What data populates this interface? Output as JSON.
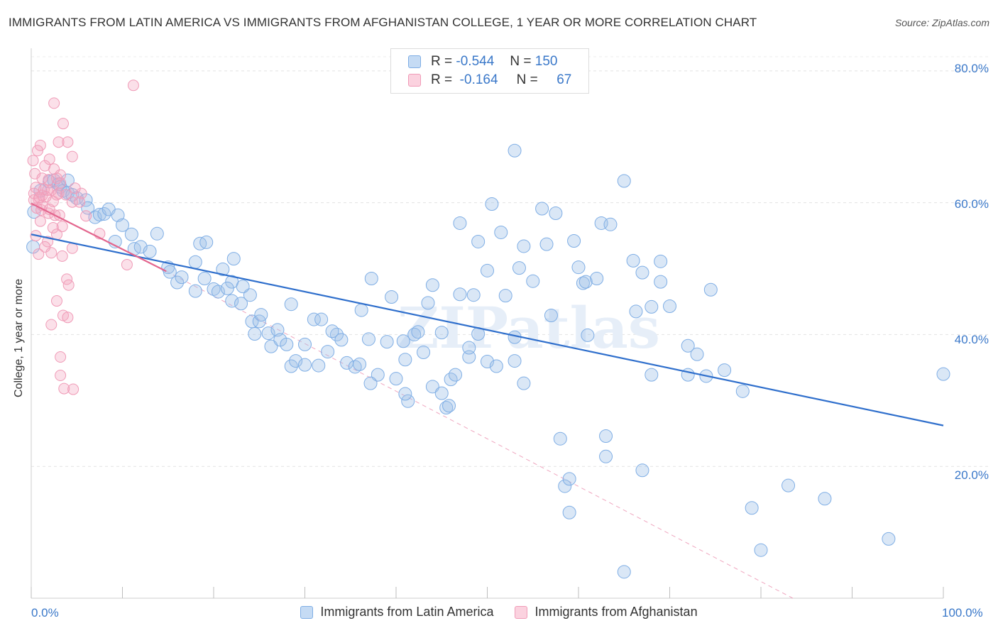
{
  "title": "IMMIGRANTS FROM LATIN AMERICA VS IMMIGRANTS FROM AFGHANISTAN COLLEGE, 1 YEAR OR MORE CORRELATION CHART",
  "source": "Source: ZipAtlas.com",
  "watermark": "ZIPatlas",
  "legend": {
    "rows": [
      {
        "r_label": "R =",
        "r_value": "-0.544",
        "n_label": "N =",
        "n_value": "150",
        "color": "#9dbfe8"
      },
      {
        "r_label": "R =",
        "r_value": "-0.164",
        "n_label": "N =",
        "n_value": "67",
        "color": "#f4a7c0"
      }
    ]
  },
  "bottom_legend": [
    {
      "label": "Immigrants from Latin America",
      "color": "#9dbfe8"
    },
    {
      "label": "Immigrants from Afghanistan",
      "color": "#f4a7c0"
    }
  ],
  "x_tick_labels": {
    "left": "0.0%",
    "right": "100.0%"
  },
  "y_tick_labels": [
    "80.0%",
    "60.0%",
    "40.0%",
    "20.0%"
  ],
  "chart_data": {
    "type": "scatter",
    "title": "IMMIGRANTS FROM LATIN AMERICA VS IMMIGRANTS FROM AFGHANISTAN COLLEGE, 1 YEAR OR MORE CORRELATION CHART",
    "xlabel": "",
    "ylabel": "College, 1 year or more",
    "xlim": [
      0,
      100
    ],
    "ylim": [
      0,
      83
    ],
    "y_ticks": [
      20,
      40,
      60,
      80
    ],
    "grid": "horizontal dashed",
    "legend_position": "top-center",
    "colors": {
      "latin": "#4f8fd6",
      "afghan": "#ec7aa0",
      "latin_line": "#2f6fcc",
      "afghan_line": "#e3668e"
    },
    "series": [
      {
        "name": "Immigrants from Latin America",
        "points": [
          [
            0.2,
            53.3
          ],
          [
            0.3,
            58.6
          ],
          [
            1,
            61.8
          ],
          [
            2,
            63.2
          ],
          [
            2.5,
            63.4
          ],
          [
            3,
            62.8
          ],
          [
            3.2,
            62.4
          ],
          [
            3.5,
            61.8
          ],
          [
            4,
            61.5
          ],
          [
            4.5,
            61.2
          ],
          [
            5,
            60.7
          ],
          [
            6,
            60.4
          ],
          [
            6.2,
            59.2
          ],
          [
            7,
            57.8
          ],
          [
            7.5,
            58.2
          ],
          [
            8,
            58.3
          ],
          [
            8.5,
            59.0
          ],
          [
            9.5,
            58.1
          ],
          [
            10,
            56.6
          ],
          [
            11,
            55.2
          ],
          [
            9.2,
            54.1
          ],
          [
            11.3,
            53.0
          ],
          [
            12,
            53.3
          ],
          [
            13,
            52.6
          ],
          [
            13.8,
            55.3
          ],
          [
            15,
            50.2
          ],
          [
            15.2,
            49.5
          ],
          [
            16,
            47.9
          ],
          [
            16.5,
            48.7
          ],
          [
            18,
            46.6
          ],
          [
            18,
            51.0
          ],
          [
            18.5,
            53.8
          ],
          [
            19,
            48.5
          ],
          [
            20,
            46.9
          ],
          [
            19.2,
            54.0
          ],
          [
            20.5,
            46.5
          ],
          [
            21,
            49.9
          ],
          [
            22,
            48.0
          ],
          [
            21.5,
            47.0
          ],
          [
            22.2,
            51.5
          ],
          [
            22,
            45.1
          ],
          [
            23,
            44.7
          ],
          [
            24,
            46.0
          ],
          [
            23.2,
            47.3
          ],
          [
            24.5,
            40.1
          ],
          [
            24.2,
            42.0
          ],
          [
            25,
            42.0
          ],
          [
            25.2,
            43.0
          ],
          [
            26,
            40.2
          ],
          [
            27,
            40.7
          ],
          [
            26.3,
            38.2
          ],
          [
            27.3,
            39.2
          ],
          [
            28,
            38.5
          ],
          [
            28.5,
            35.2
          ],
          [
            28.5,
            44.6
          ],
          [
            29,
            36.0
          ],
          [
            30,
            35.4
          ],
          [
            30,
            38.5
          ],
          [
            31,
            42.3
          ],
          [
            31.5,
            35.3
          ],
          [
            31.8,
            42.3
          ],
          [
            32.5,
            37.4
          ],
          [
            33.5,
            40.0
          ],
          [
            34,
            39.2
          ],
          [
            34.6,
            35.7
          ],
          [
            35.5,
            35.1
          ],
          [
            36,
            35.5
          ],
          [
            36.2,
            43.7
          ],
          [
            37,
            39.3
          ],
          [
            37.3,
            48.5
          ],
          [
            38,
            33.9
          ],
          [
            37.2,
            32.6
          ],
          [
            39,
            38.9
          ],
          [
            39.5,
            45.7
          ],
          [
            40,
            33.3
          ],
          [
            40.8,
            39.0
          ],
          [
            41,
            36.2
          ],
          [
            41.3,
            29.9
          ],
          [
            41,
            31.0
          ],
          [
            42,
            40.0
          ],
          [
            42.4,
            40.4
          ],
          [
            43,
            37.3
          ],
          [
            43.5,
            44.8
          ],
          [
            44,
            47.5
          ],
          [
            44,
            32.1
          ],
          [
            45,
            31.1
          ],
          [
            45.5,
            28.9
          ],
          [
            45.8,
            29.2
          ],
          [
            46,
            33.2
          ],
          [
            46.5,
            33.9
          ],
          [
            47,
            46.1
          ],
          [
            47,
            56.9
          ],
          [
            48,
            36.6
          ],
          [
            48,
            38.0
          ],
          [
            48.5,
            46.0
          ],
          [
            49,
            40.1
          ],
          [
            49,
            54.1
          ],
          [
            50,
            35.9
          ],
          [
            50,
            49.7
          ],
          [
            50.5,
            59.8
          ],
          [
            51,
            35.2
          ],
          [
            51.5,
            55.5
          ],
          [
            52,
            45.9
          ],
          [
            53,
            39.6
          ],
          [
            53,
            36.0
          ],
          [
            54,
            32.6
          ],
          [
            53.5,
            50.1
          ],
          [
            54,
            53.4
          ],
          [
            55,
            48.1
          ],
          [
            56,
            59.1
          ],
          [
            56.5,
            53.7
          ],
          [
            57,
            42.9
          ],
          [
            57.5,
            58.4
          ],
          [
            58,
            24.2
          ],
          [
            58.5,
            17.0
          ],
          [
            59,
            18.1
          ],
          [
            59,
            13.0
          ],
          [
            59.5,
            54.2
          ],
          [
            60,
            50.2
          ],
          [
            60.5,
            47.8
          ],
          [
            60.8,
            48.0
          ],
          [
            61,
            39.9
          ],
          [
            62,
            48.5
          ],
          [
            62.5,
            56.9
          ],
          [
            63.5,
            56.7
          ],
          [
            63,
            24.6
          ],
          [
            63,
            21.5
          ],
          [
            65,
            4.0
          ],
          [
            65,
            63.3
          ],
          [
            66,
            51.2
          ],
          [
            66.3,
            43.5
          ],
          [
            67,
            19.4
          ],
          [
            67,
            49.4
          ],
          [
            68,
            33.9
          ],
          [
            68,
            44.2
          ],
          [
            69,
            48.0
          ],
          [
            69,
            51.1
          ],
          [
            70,
            44.3
          ],
          [
            72,
            38.3
          ],
          [
            72,
            33.9
          ],
          [
            73,
            37.0
          ],
          [
            74,
            33.7
          ],
          [
            74.5,
            46.8
          ],
          [
            76,
            34.6
          ],
          [
            78,
            31.4
          ],
          [
            79,
            13.7
          ],
          [
            80,
            7.3
          ],
          [
            83,
            17.1
          ],
          [
            87,
            15.1
          ],
          [
            94,
            9.0
          ],
          [
            100,
            34.0
          ],
          [
            53,
            67.9
          ],
          [
            4,
            63.4
          ],
          [
            33,
            40.5
          ],
          [
            45,
            40.3
          ]
        ],
        "trend": {
          "x": [
            0,
            100
          ],
          "y": [
            55.2,
            26.2
          ]
        }
      },
      {
        "name": "Immigrants from Afghanistan",
        "points": [
          [
            11.2,
            77.8
          ],
          [
            2.5,
            75.1
          ],
          [
            3.5,
            72.0
          ],
          [
            1,
            68.7
          ],
          [
            3,
            69.2
          ],
          [
            4,
            69.2
          ],
          [
            0.7,
            67.9
          ],
          [
            2,
            66.6
          ],
          [
            4.5,
            67.0
          ],
          [
            0.2,
            66.4
          ],
          [
            1.5,
            65.6
          ],
          [
            2.5,
            65.1
          ],
          [
            0.4,
            64.4
          ],
          [
            1.2,
            63.7
          ],
          [
            2.8,
            63.7
          ],
          [
            3.2,
            64.2
          ],
          [
            0.5,
            62.3
          ],
          [
            1.4,
            62.0
          ],
          [
            2.2,
            61.9
          ],
          [
            0.3,
            61.4
          ],
          [
            1.2,
            61.1
          ],
          [
            1.8,
            61.9
          ],
          [
            3,
            61.4
          ],
          [
            3.8,
            61.2
          ],
          [
            5.5,
            61.4
          ],
          [
            0.8,
            60.5
          ],
          [
            2.4,
            60.2
          ],
          [
            4.5,
            60.1
          ],
          [
            0.6,
            59.2
          ],
          [
            1.1,
            58.9
          ],
          [
            1.9,
            58.4
          ],
          [
            2.6,
            58.1
          ],
          [
            6,
            58.0
          ],
          [
            1,
            57.2
          ],
          [
            2.4,
            56.2
          ],
          [
            3.4,
            56.4
          ],
          [
            2.8,
            55.2
          ],
          [
            0.5,
            55.0
          ],
          [
            1.8,
            54.1
          ],
          [
            7.5,
            55.3
          ],
          [
            1.5,
            53.3
          ],
          [
            2.2,
            52.4
          ],
          [
            0.8,
            52.2
          ],
          [
            3.4,
            51.9
          ],
          [
            4.5,
            53.1
          ],
          [
            10.5,
            50.6
          ],
          [
            1.2,
            59.6
          ],
          [
            3.1,
            58.1
          ],
          [
            3.9,
            48.4
          ],
          [
            4.1,
            47.5
          ],
          [
            2.8,
            45.1
          ],
          [
            3.5,
            42.9
          ],
          [
            4,
            42.6
          ],
          [
            2.2,
            41.5
          ],
          [
            3.2,
            36.6
          ],
          [
            3.2,
            33.8
          ],
          [
            3.6,
            31.8
          ],
          [
            4.6,
            31.7
          ],
          [
            5.3,
            60.1
          ],
          [
            0.3,
            60.4
          ],
          [
            1.6,
            60.9
          ],
          [
            0.9,
            60.8
          ],
          [
            3.2,
            63.0
          ],
          [
            1.9,
            63.5
          ],
          [
            4.8,
            62.2
          ],
          [
            2,
            59.0
          ],
          [
            2.8,
            61.2
          ]
        ],
        "trend": {
          "x": [
            0,
            14.8
          ],
          "y": [
            59.9,
            49.6
          ]
        },
        "trend_extended": {
          "x": [
            14.8,
            83.5
          ],
          "y": [
            49.6,
            0
          ]
        }
      }
    ]
  }
}
